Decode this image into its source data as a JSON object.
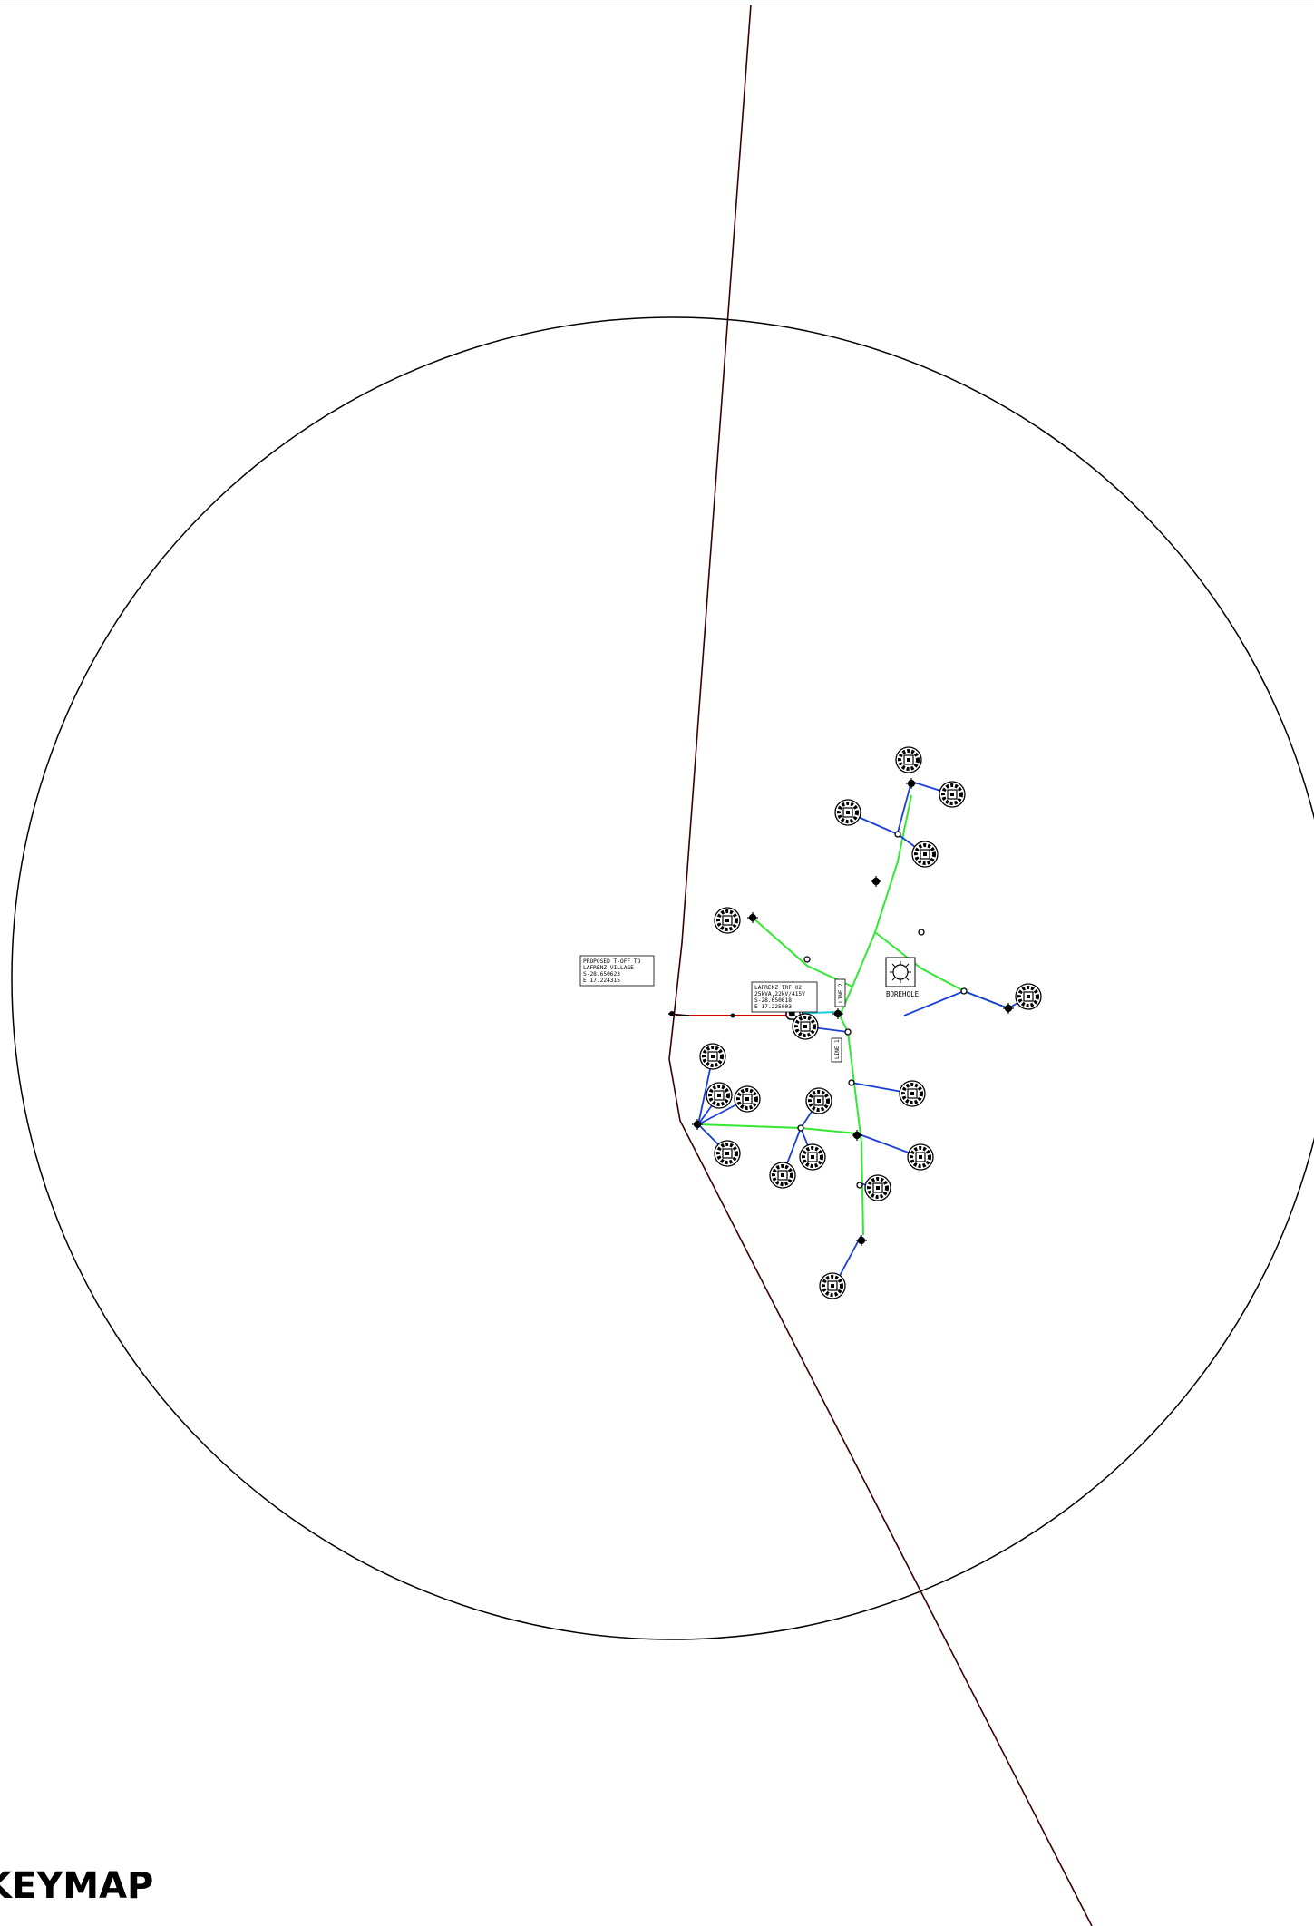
{
  "title": "KEYMAP",
  "colors": {
    "road": "#3a0000",
    "circle": "#000000",
    "mv_line": "#d10000",
    "lv_trunk": "#33e833",
    "service": "#1a3fd6",
    "link": "#1ec9d9"
  },
  "labels": {
    "tee_off": [
      "PROPOSED T-OFF TO",
      "LAFRENZ VILLAGE",
      "S-28.650623",
      "E 17.224315"
    ],
    "transformer": [
      "LAFRENZ TRF 02",
      "25kVA,22kV/415V",
      "S-28.650618",
      "E 17.225003"
    ],
    "borehole": "BOREHOLE",
    "line_tag_1": "LINE 1",
    "line_tag_2": "LINE 2"
  },
  "icons": [
    "house-icon",
    "pole-icon",
    "transformer-icon",
    "borehole-icon"
  ]
}
